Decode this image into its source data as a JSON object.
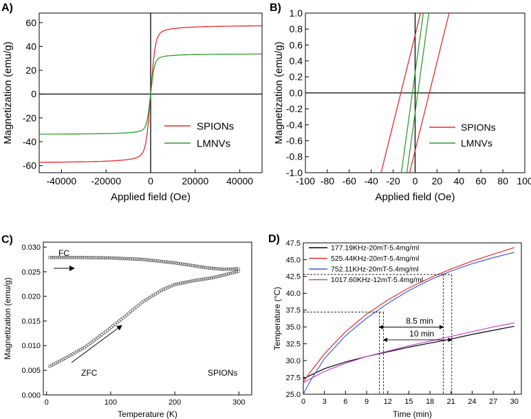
{
  "chart_data": [
    {
      "panel": "A)",
      "type": "line",
      "xlabel": "Applied field (Oe)",
      "ylabel": "Magnetization (emu/g)",
      "xlim": [
        -50000,
        50000
      ],
      "ylim": [
        -66,
        68
      ],
      "xticks": [
        -40000,
        -20000,
        0,
        20000,
        40000
      ],
      "yticks": [
        -60,
        -40,
        -20,
        0,
        20,
        40,
        60
      ],
      "zero_lines": true,
      "legend": "center-right",
      "series": [
        {
          "name": "SPIONs",
          "color": "#e8282b",
          "ms": 58,
          "half_field": 1800,
          "coercivity": 0
        },
        {
          "name": "LMNVs",
          "color": "#2aa02a",
          "ms": 34,
          "half_field": 1500,
          "coercivity": 0
        }
      ]
    },
    {
      "panel": "B)",
      "type": "line",
      "xlabel": "Applied field (Oe)",
      "ylabel": "Magnetization (emu/g)",
      "xlim": [
        -100,
        100
      ],
      "ylim": [
        -1.0,
        1.0
      ],
      "xticks": [
        -100,
        -80,
        -60,
        -40,
        -20,
        0,
        20,
        40,
        60,
        80,
        100
      ],
      "yticks": [
        -1.0,
        -0.8,
        -0.6,
        -0.4,
        -0.2,
        0.0,
        0.2,
        0.4,
        0.6,
        0.8,
        1.0
      ],
      "zero_lines": true,
      "legend": "lower-right",
      "series": [
        {
          "name": "SPIONs",
          "color": "#e8282b",
          "slope_x_per_unit": 18,
          "coercivity": 13
        },
        {
          "name": "LMNVs",
          "color": "#2aa02a",
          "slope_x_per_unit": 10,
          "coercivity": 2.5
        }
      ]
    },
    {
      "panel": "C)",
      "type": "scatter",
      "xlabel": "Temperature (K)",
      "ylabel": "Magnetization (emu/g)",
      "xlim": [
        -5,
        320
      ],
      "ylim": [
        0.0,
        0.031
      ],
      "xticks": [
        0,
        100,
        200,
        300
      ],
      "yticks": [
        0.0,
        0.005,
        0.01,
        0.015,
        0.02,
        0.025,
        0.03
      ],
      "annotations": [
        "FC",
        "ZFC",
        "SPIONs"
      ],
      "series": [
        {
          "name": "FC",
          "marker": "open-circle",
          "x": [
            5,
            50,
            100,
            150,
            200,
            250,
            275,
            300
          ],
          "y": [
            0.0279,
            0.0279,
            0.0278,
            0.0275,
            0.0268,
            0.0258,
            0.0255,
            0.0256
          ]
        },
        {
          "name": "ZFC",
          "marker": "open-circle",
          "x": [
            5,
            30,
            60,
            90,
            120,
            150,
            180,
            200,
            230,
            260,
            300
          ],
          "y": [
            0.0058,
            0.0075,
            0.0097,
            0.0126,
            0.0157,
            0.0189,
            0.0213,
            0.0224,
            0.0232,
            0.0238,
            0.0251
          ]
        }
      ]
    },
    {
      "panel": "D)",
      "type": "line",
      "xlabel": "Time (min)",
      "ylabel": "Temperature (°C)",
      "xlim": [
        0,
        31
      ],
      "ylim": [
        25.0,
        47.5
      ],
      "xticks": [
        0,
        3,
        6,
        9,
        12,
        15,
        18,
        21,
        24,
        27,
        30
      ],
      "yticks": [
        25.0,
        27.5,
        30.0,
        32.5,
        35.0,
        37.5,
        40.0,
        42.5,
        45.0,
        47.5
      ],
      "legend": "top-left",
      "series": [
        {
          "name": "177.19KHz-20mT-5.4mg/ml",
          "color": "#000000",
          "x": [
            0,
            1,
            3,
            6,
            9,
            12,
            15,
            18,
            21,
            24,
            27,
            30
          ],
          "y": [
            27.3,
            27.8,
            28.8,
            29.8,
            30.6,
            31.3,
            32.0,
            32.6,
            33.2,
            33.9,
            34.5,
            35.1
          ]
        },
        {
          "name": "525.44KHz-20mT-5.4mg/ml",
          "color": "#e8282b",
          "x": [
            0,
            1,
            3,
            6,
            9,
            12,
            15,
            18,
            21,
            24,
            27,
            30
          ],
          "y": [
            26.8,
            28.3,
            31.0,
            34.3,
            36.9,
            39.0,
            40.8,
            42.3,
            43.6,
            44.8,
            45.8,
            46.8
          ]
        },
        {
          "name": "752.11KHz-20mT-5.4mg/ml",
          "color": "#3d5bd9",
          "x": [
            0,
            1,
            3,
            6,
            9,
            12,
            15,
            18,
            21,
            24,
            27,
            30
          ],
          "y": [
            25.0,
            27.0,
            30.3,
            33.7,
            36.3,
            38.5,
            40.4,
            42.0,
            43.3,
            44.4,
            45.3,
            46.1
          ]
        },
        {
          "name": "1017.60KHz-12mT-5.4mg/ml",
          "color": "#c53fd1",
          "x": [
            0,
            1,
            3,
            6,
            9,
            12,
            15,
            18,
            21,
            24,
            27,
            30
          ],
          "y": [
            26.7,
            27.3,
            28.4,
            29.6,
            30.6,
            31.4,
            32.2,
            32.9,
            33.6,
            34.3,
            35.0,
            35.6
          ]
        }
      ],
      "guides": {
        "ref_temps": [
          37.2,
          42.8
        ],
        "red_cross_times": [
          10.8,
          19.9
        ],
        "blue_cross_times": [
          11.4,
          21.1
        ]
      },
      "annotations": [
        {
          "text": "8.5 min",
          "y": 35.7
        },
        {
          "text": "10 min",
          "y": 33.8
        }
      ]
    }
  ]
}
